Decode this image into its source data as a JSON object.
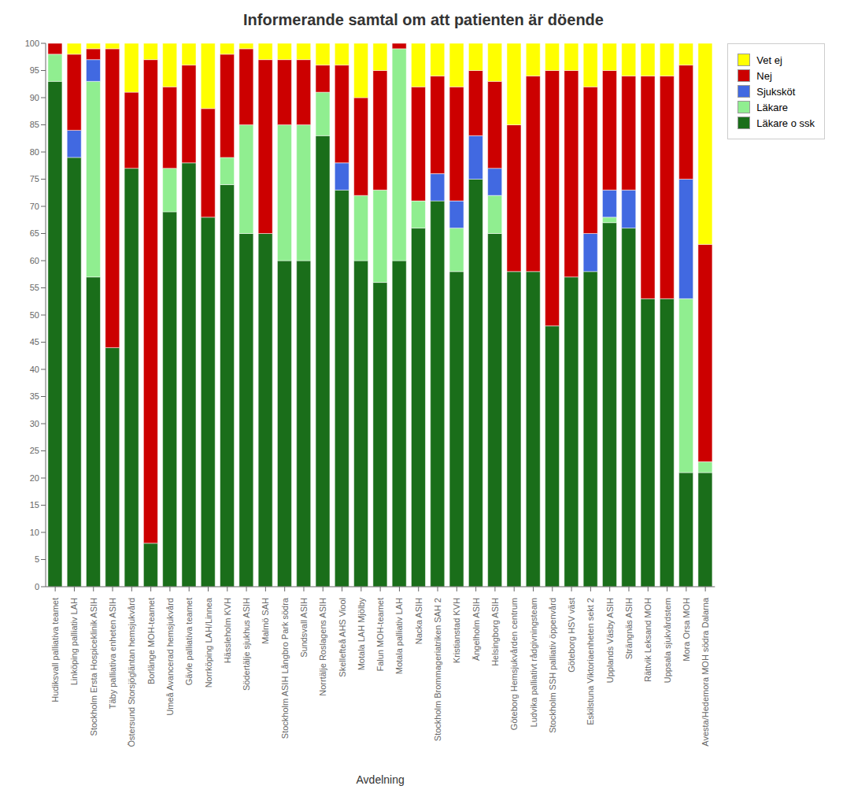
{
  "chart_data": {
    "type": "bar",
    "title": "Informerande samtal om att patienten är döende",
    "x_label": "Avdelning",
    "stacked": true,
    "grid": false,
    "legend": "right",
    "ylim": [
      0,
      100
    ],
    "yticks": [
      0,
      5,
      10,
      15,
      20,
      25,
      30,
      35,
      40,
      45,
      50,
      55,
      60,
      65,
      70,
      75,
      80,
      85,
      90,
      95,
      100
    ],
    "categories": [
      "Hudiksvall palliativa teamet",
      "Linköping palliativ LAH",
      "Stockholm Ersta Hospiceklinik ASIH",
      "Täby palliativa enheten ASIH",
      "Östersund Storsjögläntan hemsjukvård",
      "Borlänge MOH-teamet",
      "Umeå Avancerad hemsjukvård",
      "Gävle palliativa teamet",
      "Norrköping LAH/Linnea",
      "Hässleholm KVH",
      "Södertälje sjukhus ASIH",
      "Malmö SAH",
      "Stockholm ASIH Långbro Park södra",
      "Sundsvall ASIH",
      "Norrtälje Roslagens ASIH",
      "Skellefteå AHS Viool",
      "Motala LAH Mjölby",
      "Falun MOH-teamet",
      "Motala palliativ LAH",
      "Nacka ASIH",
      "Stockholm Brommageriatriken SAH 2",
      "Kristianstad KVH",
      "Ängelholm ASIH",
      "Helsingborg ASIH",
      "Göteborg Hemsjukvården centrum",
      "Ludvika palliativt rådgivningsteam",
      "Stockholm SSH palliativ öppenvård",
      "Göteborg HSV väst",
      "Eskilstuna Viktoriaenheten sekt 2",
      "Upplands Väsby ASIH",
      "Strängnäs ASIH",
      "Rättvik Leksand MOH",
      "Uppsala sjukvårdstem",
      "Mora Orsa MOH",
      "Avesta/Hedemora MOH södra Dalarna"
    ],
    "series": [
      {
        "name": "Läkare o ssk",
        "color": "#1a6e1a",
        "values": [
          93,
          79,
          57,
          44,
          77,
          8,
          69,
          78,
          68,
          74,
          65,
          65,
          60,
          60,
          83,
          73,
          60,
          56,
          60,
          66,
          71,
          58,
          75,
          65,
          58,
          58,
          48,
          57,
          58,
          67,
          66,
          53,
          53,
          21,
          21
        ]
      },
      {
        "name": "Läkare",
        "color": "#90ee90",
        "values": [
          5,
          0,
          36,
          0,
          0,
          0,
          8,
          0,
          0,
          5,
          20,
          0,
          25,
          25,
          8,
          0,
          12,
          17,
          39,
          5,
          0,
          8,
          0,
          7,
          0,
          0,
          0,
          0,
          0,
          1,
          0,
          0,
          0,
          32,
          2
        ]
      },
      {
        "name": "Sjuksköt",
        "color": "#4169e1",
        "values": [
          0,
          5,
          4,
          0,
          0,
          0,
          0,
          0,
          0,
          0,
          0,
          0,
          0,
          0,
          0,
          5,
          0,
          0,
          0,
          0,
          5,
          5,
          8,
          5,
          0,
          0,
          0,
          0,
          7,
          5,
          7,
          0,
          0,
          22,
          0
        ]
      },
      {
        "name": "Nej",
        "color": "#cc0000",
        "values": [
          2,
          14,
          2,
          55,
          14,
          89,
          15,
          18,
          20,
          19,
          14,
          32,
          12,
          12,
          5,
          18,
          18,
          22,
          1,
          21,
          18,
          21,
          12,
          16,
          27,
          36,
          47,
          38,
          27,
          22,
          21,
          41,
          41,
          21,
          40
        ]
      },
      {
        "name": "Vet ej",
        "color": "#ffff00",
        "values": [
          0,
          2,
          1,
          1,
          9,
          3,
          8,
          4,
          12,
          2,
          1,
          3,
          3,
          3,
          4,
          4,
          10,
          5,
          0,
          8,
          6,
          8,
          5,
          7,
          15,
          6,
          5,
          5,
          8,
          5,
          6,
          6,
          6,
          4,
          37
        ]
      }
    ]
  }
}
